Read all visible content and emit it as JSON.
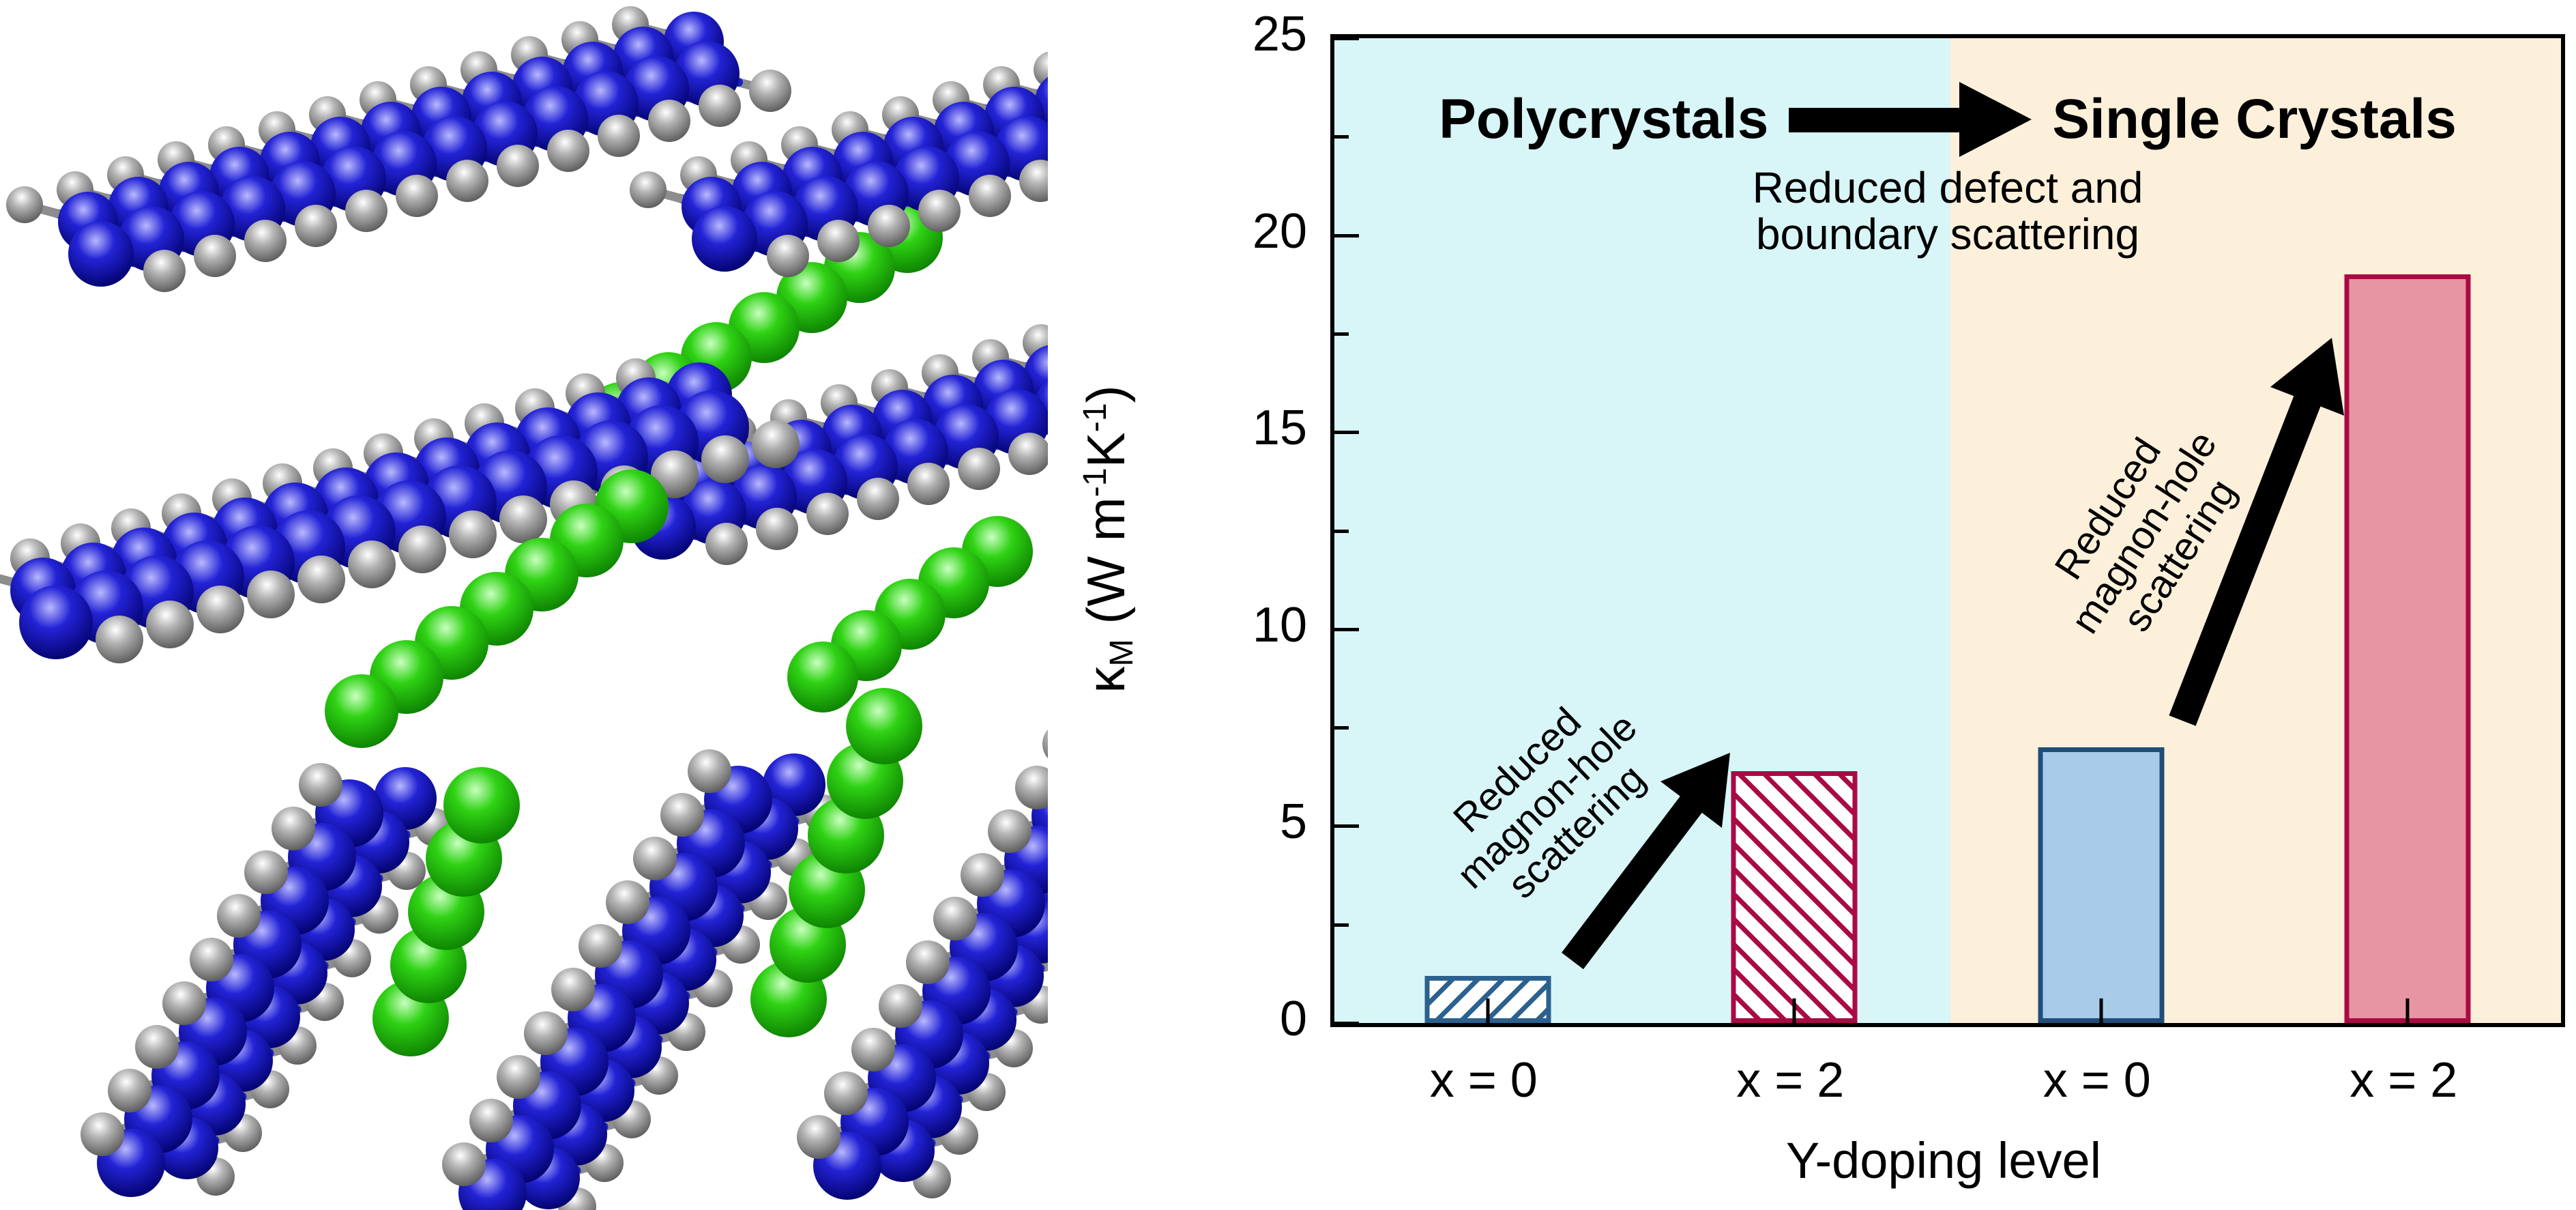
{
  "chart_data": {
    "type": "bar",
    "categories": [
      "x = 0",
      "x = 2",
      "x = 0",
      "x = 2"
    ],
    "values": [
      1.2,
      6.4,
      7.0,
      19.0
    ],
    "groups": [
      "Polycrystals",
      "Polycrystals",
      "Single Crystals",
      "Single Crystals"
    ],
    "title": "Polycrystals → Single Crystals",
    "subtitle": "Reduced defect and boundary scattering",
    "xlabel": "Y-doping level",
    "ylabel": "κM (W m-1K-1)",
    "ylim": [
      0,
      25
    ],
    "yticks_major": [
      0,
      5,
      10,
      15,
      20,
      25
    ],
    "yticks_minor": [
      2.5,
      7.5,
      12.5,
      17.5,
      22.5
    ],
    "grid": false,
    "legend": "none",
    "region_split_fraction": 0.502,
    "bar_styles": [
      {
        "fill": "#ffffff",
        "hatch": "/",
        "edge": "#2b618e"
      },
      {
        "fill": "#ffffff",
        "hatch": "\\",
        "edge": "#aa0a44"
      },
      {
        "fill": "#a8cbea",
        "hatch": null,
        "edge": "#1f4e79"
      },
      {
        "fill": "#e795a2",
        "hatch": null,
        "edge": "#aa0a44"
      }
    ],
    "annotations": [
      "Reduced magnon-hole scattering (arrow from x = 0 bar to x = 2 bar, polycrystals)",
      "Reduced magnon-hole scattering (arrow from x = 0 bar to x = 2 bar, single crystals)"
    ]
  },
  "chart": {
    "header": {
      "left_label": "Polycrystals",
      "right_label": "Single Crystals"
    },
    "subtitle": {
      "line1": "Reduced defect and",
      "line2": "boundary scattering"
    },
    "diag_left": {
      "line1": "Reduced",
      "line2": "magnon-hole",
      "line3": "scattering"
    },
    "diag_right": {
      "line1": "Reduced",
      "line2": "magnon-hole",
      "line3": "scattering"
    },
    "xlabel": "Y-doping level",
    "ylabel_parts": [
      [
        "κ",
        "n"
      ],
      [
        "M",
        "sub"
      ],
      [
        " (W m",
        "n"
      ],
      [
        "-1",
        "sup"
      ],
      [
        "K",
        "n"
      ],
      [
        "-1",
        "sup"
      ],
      [
        ")",
        "n"
      ]
    ],
    "colors": {
      "region_left_bg": "#d8f5f7",
      "region_right_bg": "#fcf0db",
      "axis": "#000000",
      "arrow": "#000000",
      "hatch_blue": "#2b618e",
      "hatch_crimson": "#aa0a44",
      "solid_blue_fill": "#a8cbea",
      "solid_blue_edge": "#1f4e79",
      "solid_pink_fill": "#e795a2",
      "solid_pink_edge": "#aa0a44"
    }
  },
  "crystal": {
    "description": "Ball-and-stick layered crystal structure: blue/gray bonded slabs with green intercalated atom chains",
    "atom_colors": {
      "blue": {
        "light": "#b9b9ff",
        "base": "#2323d6",
        "dark": "#000066"
      },
      "gray": {
        "light": "#ffffff",
        "base": "#b2b2b2",
        "dark": "#555555"
      },
      "green": {
        "light": "#c9ffc0",
        "base": "#2fd214",
        "dark": "#0b7c00"
      }
    },
    "bond_colors": {
      "blue": "#1a22c4",
      "gray": "#8d8d8d"
    },
    "background": "#ffffff"
  }
}
